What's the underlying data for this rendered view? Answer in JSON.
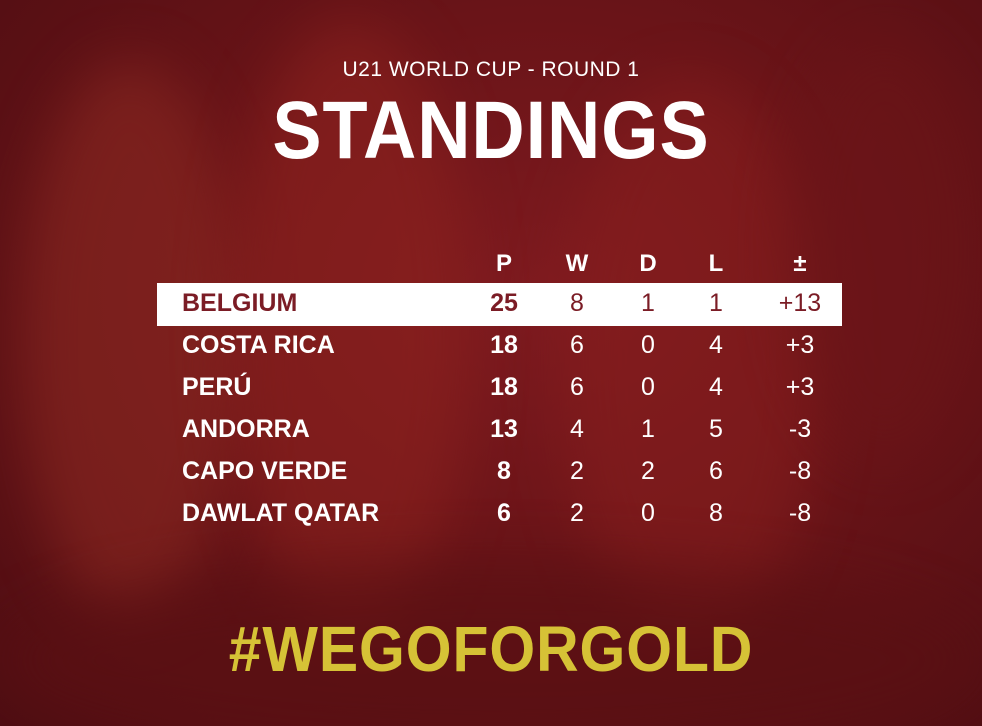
{
  "header": {
    "subtitle": "U21 WORLD CUP - ROUND 1",
    "title": "STANDINGS"
  },
  "table": {
    "columns": [
      "P",
      "W",
      "D",
      "L",
      "±"
    ],
    "rows": [
      [
        "BELGIUM",
        "25",
        "8",
        "1",
        "1",
        "+13"
      ],
      [
        "COSTA RICA",
        "18",
        "6",
        "0",
        "4",
        "+3"
      ],
      [
        "PERÚ",
        "18",
        "6",
        "0",
        "4",
        "+3"
      ],
      [
        "ANDORRA",
        "13",
        "4",
        "1",
        "5",
        "-3"
      ],
      [
        "CAPO VERDE",
        "8",
        "2",
        "2",
        "6",
        "-8"
      ],
      [
        "DAWLAT QATAR",
        "6",
        "2",
        "0",
        "8",
        "-8"
      ]
    ]
  },
  "footer": {
    "hashtag": "#WEGOFORGOLD"
  }
}
